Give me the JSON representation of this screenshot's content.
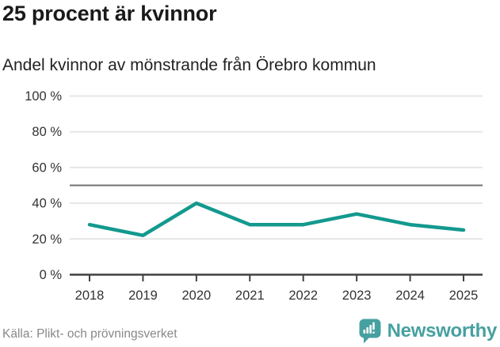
{
  "title": "25 procent är kvinnor",
  "subtitle": "Andel kvinnor av mönstrande från Örebro kommun",
  "source": "Källa: Plikt- och prövningsverket",
  "brand": {
    "name": "Newsworthy",
    "icon": "bar-chart-speech-bubble-icon"
  },
  "colors": {
    "line": "#13998E",
    "gridline": "#E6E6E6",
    "reference_line": "#707070",
    "axis": "#404040",
    "tick_text": "#333333",
    "title_text": "#1A1A1A",
    "source_text": "#888888",
    "brand_teal": "#47A0A0"
  },
  "chart_data": {
    "type": "line",
    "title": "25 procent är kvinnor",
    "subtitle": "Andel kvinnor av mönstrande från Örebro kommun",
    "x": [
      "2018",
      "2019",
      "2020",
      "2021",
      "2022",
      "2023",
      "2024",
      "2025"
    ],
    "series": [
      {
        "name": "Andel kvinnor av mönstrande",
        "values": [
          28,
          22,
          40,
          28,
          28,
          34,
          28,
          25
        ]
      }
    ],
    "xlabel": "",
    "ylabel": "",
    "ylim": [
      0,
      100
    ],
    "yticks": [
      0,
      20,
      40,
      60,
      80,
      100
    ],
    "ytick_labels": [
      "0 %",
      "20 %",
      "40 %",
      "60 %",
      "80 %",
      "100 %"
    ],
    "reference_line": 50,
    "grid": "horizontal",
    "legend": "none"
  }
}
